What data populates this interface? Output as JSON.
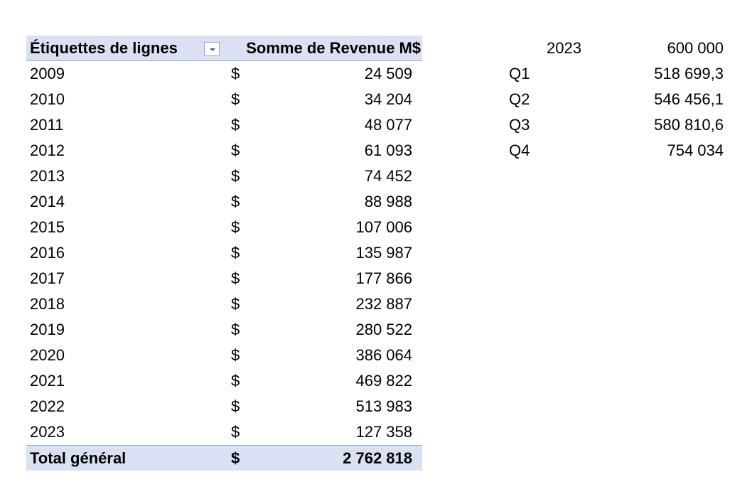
{
  "pivot": {
    "header": {
      "row_labels": "Étiquettes de lignes",
      "sum_label": "Somme de Revenue M$",
      "filter_icon": "chevron-down-icon"
    },
    "rows": [
      {
        "label": "2009",
        "currency": "$",
        "value": "24 509"
      },
      {
        "label": "2010",
        "currency": "$",
        "value": "34 204"
      },
      {
        "label": "2011",
        "currency": "$",
        "value": "48 077"
      },
      {
        "label": "2012",
        "currency": "$",
        "value": "61 093"
      },
      {
        "label": "2013",
        "currency": "$",
        "value": "74 452"
      },
      {
        "label": "2014",
        "currency": "$",
        "value": "88 988"
      },
      {
        "label": "2015",
        "currency": "$",
        "value": "107 006"
      },
      {
        "label": "2016",
        "currency": "$",
        "value": "135 987"
      },
      {
        "label": "2017",
        "currency": "$",
        "value": "177 866"
      },
      {
        "label": "2018",
        "currency": "$",
        "value": "232 887"
      },
      {
        "label": "2019",
        "currency": "$",
        "value": "280 522"
      },
      {
        "label": "2020",
        "currency": "$",
        "value": "386 064"
      },
      {
        "label": "2021",
        "currency": "$",
        "value": "469 822"
      },
      {
        "label": "2022",
        "currency": "$",
        "value": "513 983"
      },
      {
        "label": "2023",
        "currency": "$",
        "value": "127 358"
      }
    ],
    "total": {
      "label": "Total général",
      "currency": "$",
      "value": "2 762 818"
    }
  },
  "side_table": {
    "year": {
      "label": "2023",
      "value": "600 000"
    },
    "quarters": [
      {
        "label": "Q1",
        "value": "518 699,3"
      },
      {
        "label": "Q2",
        "value": "546 456,1"
      },
      {
        "label": "Q3",
        "value": "580 810,6"
      },
      {
        "label": "Q4",
        "value": "754 034"
      }
    ]
  },
  "colors": {
    "header_fill": "#d9e1f2",
    "border": "#8ea9db"
  }
}
